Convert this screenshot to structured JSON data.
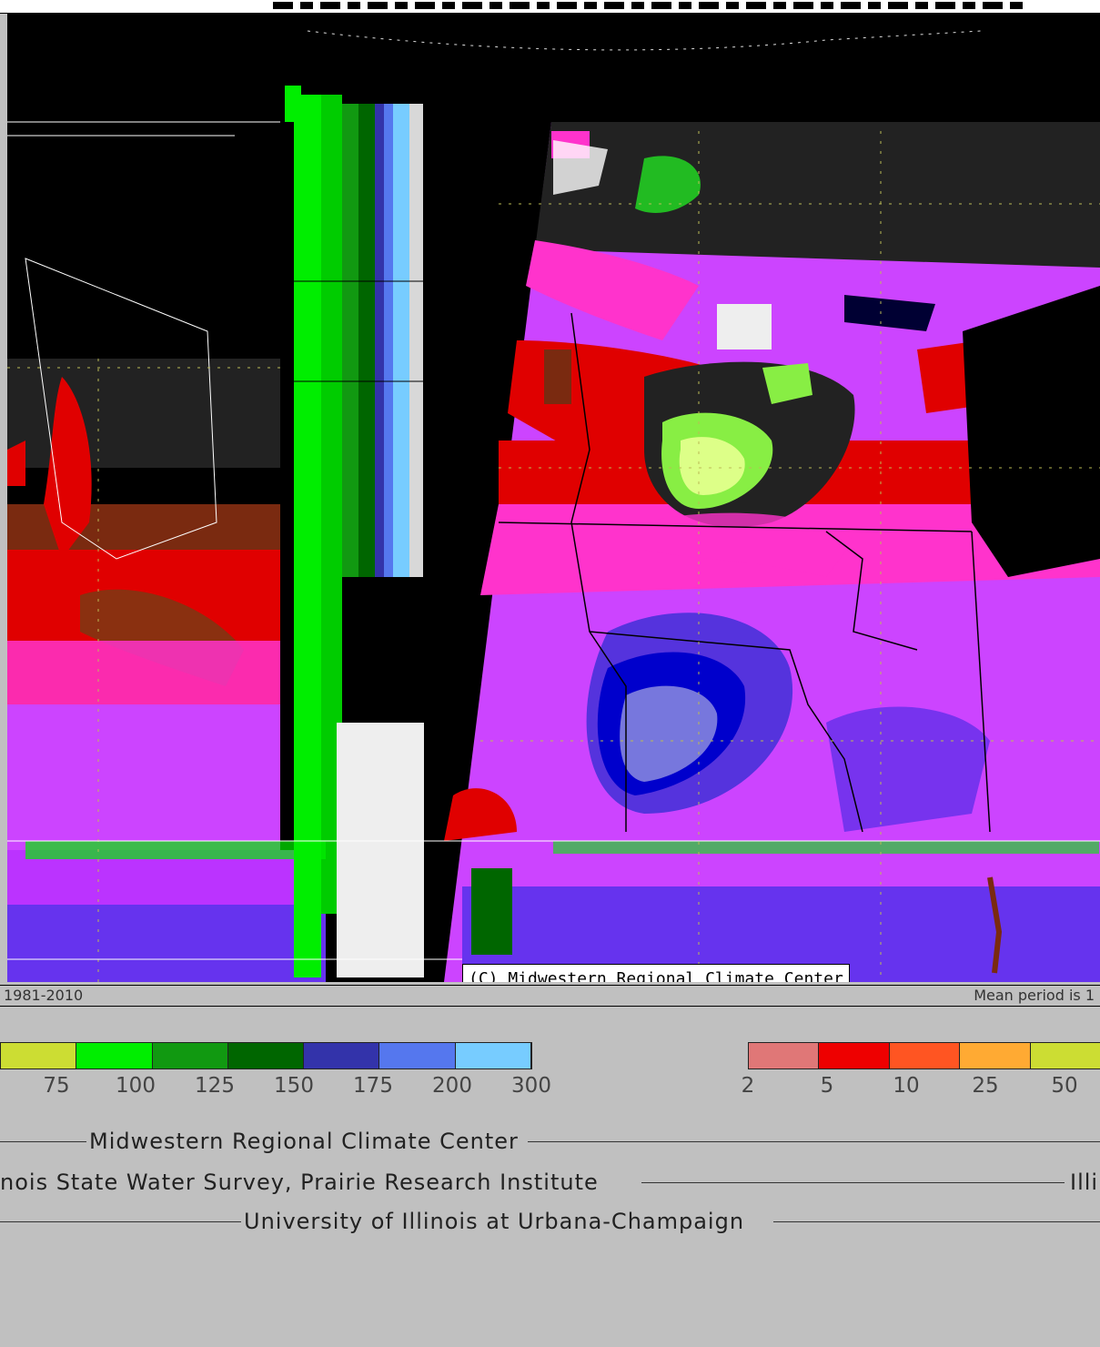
{
  "map": {
    "copyright": "(C) Midwestern Regional Climate Center",
    "period_left": "1981-2010",
    "period_right": "Mean period is 1"
  },
  "legend_left": {
    "colors": [
      "#ccdd33",
      "#00ee00",
      "#119911",
      "#006600",
      "#3333aa",
      "#5577ee",
      "#77ccff"
    ],
    "labels": [
      "75",
      "100",
      "125",
      "150",
      "175",
      "200",
      "300"
    ]
  },
  "legend_right": {
    "colors": [
      "#e07777",
      "#ee0000",
      "#ff5522",
      "#ffaa33",
      "#ccdd33"
    ],
    "labels": [
      "2",
      "5",
      "10",
      "25",
      "50"
    ]
  },
  "credits": {
    "line1": "Midwestern Regional Climate Center",
    "line2": "nois State Water Survey, Prairie Research Institute",
    "line2_right": "Illi",
    "line3": "University of Illinois at Urbana-Champaign"
  }
}
